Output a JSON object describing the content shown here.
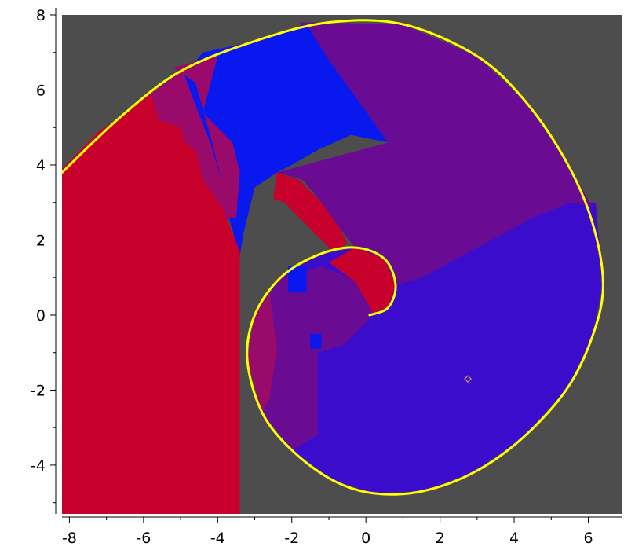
{
  "chart_data": {
    "type": "heatmap",
    "title": "",
    "xlabel": "",
    "ylabel": "",
    "xlim": [
      -8.2,
      6.9
    ],
    "ylim": [
      -5.3,
      8.0
    ],
    "x_ticks": [
      "-8",
      "-6",
      "-4",
      "-2",
      "0",
      "2",
      "4",
      "6"
    ],
    "y_ticks": [
      "8",
      "6",
      "4",
      "2",
      "0",
      "-2",
      "-4"
    ],
    "x_tick_values": [
      -8,
      -6,
      -4,
      -2,
      0,
      2,
      4,
      6
    ],
    "y_tick_values": [
      8,
      6,
      4,
      2,
      0,
      -2,
      -4
    ],
    "grid": false,
    "legend": "none",
    "colors": {
      "background": "#4d4d4d",
      "red_region": "#c8002c",
      "magenta_region": "#9a0a6a",
      "purple_region": "#6a0b94",
      "violet_region": "#3b0ccc",
      "blue_region": "#0a18f0",
      "curve": "#ffff00",
      "marker": "#d4a24c"
    },
    "series": [
      {
        "type": "spiral",
        "points": [
          [
            0.1,
            0.0
          ],
          [
            0.6,
            0.2
          ],
          [
            0.8,
            0.8
          ],
          [
            0.5,
            1.5
          ],
          [
            -0.3,
            1.8
          ],
          [
            -1.3,
            1.6
          ],
          [
            -2.3,
            1.0
          ],
          [
            -3.0,
            0.0
          ],
          [
            -3.2,
            -1.2
          ],
          [
            -2.8,
            -2.6
          ],
          [
            -2.0,
            -3.6
          ],
          [
            -0.9,
            -4.4
          ],
          [
            0.2,
            -4.75
          ],
          [
            1.5,
            -4.7
          ],
          [
            2.9,
            -4.2
          ],
          [
            4.2,
            -3.3
          ],
          [
            5.4,
            -2.0
          ],
          [
            6.1,
            -0.6
          ],
          [
            6.4,
            0.8
          ],
          [
            6.1,
            2.5
          ],
          [
            5.4,
            4.1
          ],
          [
            4.3,
            5.7
          ],
          [
            3.0,
            6.9
          ],
          [
            1.0,
            7.75
          ],
          [
            -1.0,
            7.8
          ],
          [
            -3.0,
            7.3
          ],
          [
            -5.0,
            6.5
          ],
          [
            -6.6,
            5.3
          ],
          [
            -8.2,
            3.8
          ]
        ]
      },
      {
        "type": "marker",
        "points": [
          [
            2.75,
            -1.7
          ]
        ]
      }
    ]
  }
}
